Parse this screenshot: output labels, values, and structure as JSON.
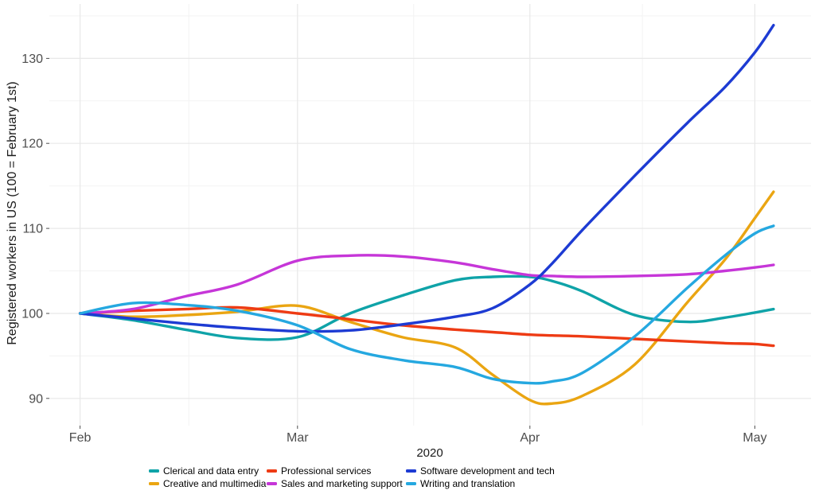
{
  "chart_data": {
    "type": "line",
    "title": "",
    "xlabel": "2020",
    "ylabel": "Registered workers in US (100 = February 1st)",
    "x_unit": "days since Feb 1, 2020",
    "x_days": [
      0,
      7,
      14,
      21,
      29,
      36,
      43,
      50,
      55,
      60,
      63,
      67,
      74,
      81,
      86,
      90,
      92.5
    ],
    "x_ticks": [
      {
        "label": "Feb",
        "day": 0
      },
      {
        "label": "Mar",
        "day": 29
      },
      {
        "label": "Apr",
        "day": 60
      },
      {
        "label": "May",
        "day": 90
      }
    ],
    "x_minor_days": [
      14.5,
      44.5,
      75
    ],
    "y_ticks": [
      90,
      100,
      110,
      120,
      130
    ],
    "y_minor": [
      95,
      105,
      115,
      125,
      135
    ],
    "xlim": [
      -4.1,
      97.5
    ],
    "ylim": [
      86.8,
      136.4
    ],
    "grid": true,
    "legend_position": "bottom",
    "axis_text_color": "#4d4d4d",
    "grid_major_color": "#e8e8e8",
    "grid_minor_color": "#f3f3f3",
    "series": [
      {
        "name": "Clerical and data entry",
        "color": "#0FA3A8",
        "values": [
          100,
          99.2,
          98.1,
          97.1,
          97.2,
          100.0,
          102.1,
          103.9,
          104.3,
          104.3,
          103.8,
          102.6,
          99.8,
          99.0,
          99.5,
          100.1,
          100.5
        ]
      },
      {
        "name": "Professional services",
        "color": "#EE3B14",
        "values": [
          100,
          100.3,
          100.5,
          100.7,
          100.0,
          99.3,
          98.6,
          98.1,
          97.8,
          97.5,
          97.4,
          97.3,
          97.0,
          96.7,
          96.5,
          96.4,
          96.2
        ]
      },
      {
        "name": "Software development and tech",
        "color": "#1D3BD3",
        "values": [
          100,
          99.4,
          98.8,
          98.3,
          97.9,
          98.0,
          98.7,
          99.6,
          100.6,
          103.4,
          105.9,
          109.8,
          116.2,
          122.4,
          126.6,
          130.7,
          133.9
        ]
      },
      {
        "name": "Creative and multimedia",
        "color": "#EAA512",
        "values": [
          100,
          99.6,
          99.8,
          100.2,
          100.9,
          99.0,
          97.2,
          96.0,
          92.8,
          89.8,
          89.4,
          90.3,
          94.0,
          101.3,
          106.3,
          111.2,
          114.3
        ]
      },
      {
        "name": "Sales and marketing support",
        "color": "#C636D8",
        "values": [
          100,
          100.5,
          102.0,
          103.4,
          106.2,
          106.8,
          106.7,
          106.0,
          105.2,
          104.5,
          104.4,
          104.3,
          104.4,
          104.6,
          105.0,
          105.4,
          105.7
        ]
      },
      {
        "name": "Writing and translation",
        "color": "#25A8E0",
        "values": [
          100,
          101.2,
          101.0,
          100.3,
          98.6,
          95.8,
          94.5,
          93.7,
          92.3,
          91.8,
          92.0,
          93.0,
          97.3,
          103.0,
          106.8,
          109.4,
          110.3
        ]
      }
    ]
  }
}
